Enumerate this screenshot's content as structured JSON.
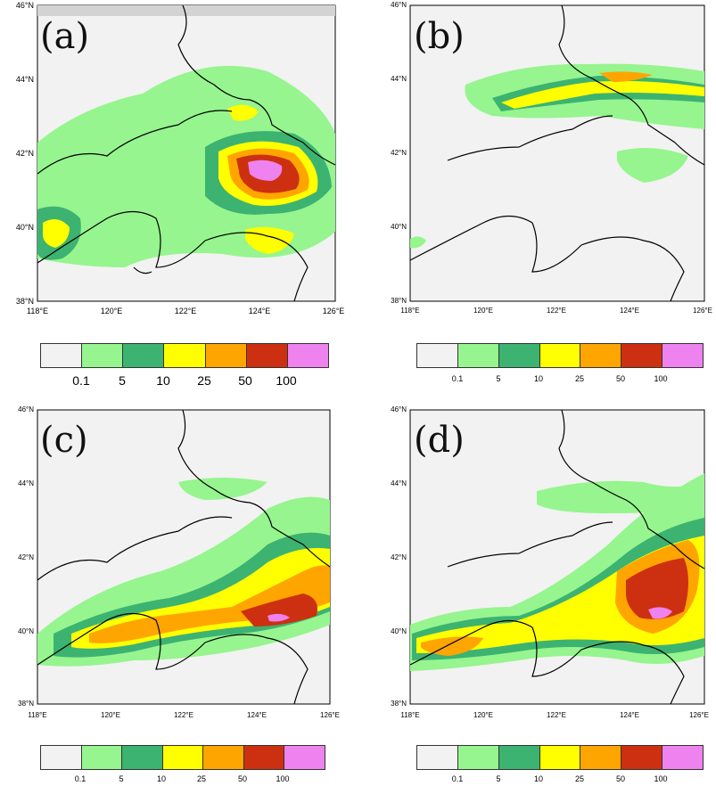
{
  "panels": [
    {
      "letter": "(a)"
    },
    {
      "letter": "(b)"
    },
    {
      "letter": "(c)"
    },
    {
      "letter": "(d)"
    }
  ],
  "lat_labels": [
    "46°N",
    "44°N",
    "42°N",
    "40°N",
    "38°N"
  ],
  "lon_labels": [
    "118°E",
    "120°E",
    "122°E",
    "124°E",
    "126°E"
  ],
  "colorbar": {
    "labels": [
      "0.1",
      "5",
      "10",
      "25",
      "50",
      "100"
    ],
    "colors": [
      "#f2f2f2",
      "#96f58e",
      "#3cb371",
      "#ffff00",
      "#ffa500",
      "#cd3010",
      "#ee82ee"
    ]
  }
}
